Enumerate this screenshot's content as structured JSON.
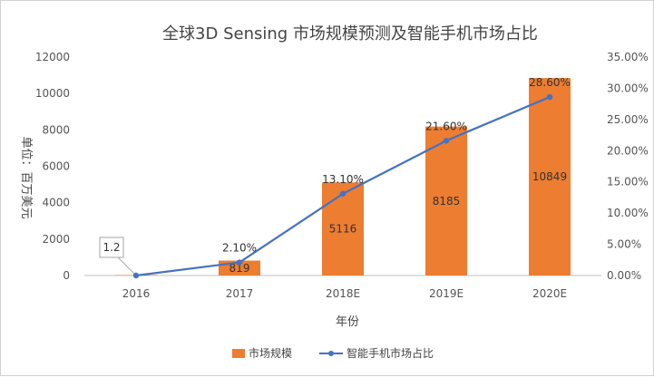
{
  "chart_data": {
    "type": "bar",
    "title": "全球3D Sensing 市场规模预测及智能手机市场占比",
    "xlabel": "年份",
    "ylabel": "单位：百万美元",
    "categories": [
      "2016",
      "2017",
      "2018E",
      "2019E",
      "2020E"
    ],
    "ylim": [
      0,
      12000
    ],
    "y_ticks": [
      "0",
      "2000",
      "4000",
      "6000",
      "8000",
      "10000",
      "12000"
    ],
    "y2lim": [
      0,
      35
    ],
    "y2_ticks": [
      "0.00%",
      "5.00%",
      "10.00%",
      "15.00%",
      "20.00%",
      "25.00%",
      "30.00%",
      "35.00%"
    ],
    "grid": false,
    "legend_position": "bottom",
    "series": [
      {
        "name": "市场规模",
        "type": "bar",
        "axis": "left",
        "values": [
          1.2,
          819,
          5116,
          8185,
          10849
        ],
        "labels": [
          "1.2",
          "819",
          "5116",
          "8185",
          "10849"
        ]
      },
      {
        "name": "智能手机市场占比",
        "type": "line",
        "axis": "right",
        "values": [
          0.0,
          2.1,
          13.1,
          21.6,
          28.6
        ],
        "labels": [
          "",
          "2.10%",
          "13.10%",
          "21.60%",
          "28.60%"
        ]
      }
    ],
    "colors": {
      "bar": "#ED7D31",
      "line": "#4472C4",
      "axis": "#bfbfbf"
    }
  }
}
